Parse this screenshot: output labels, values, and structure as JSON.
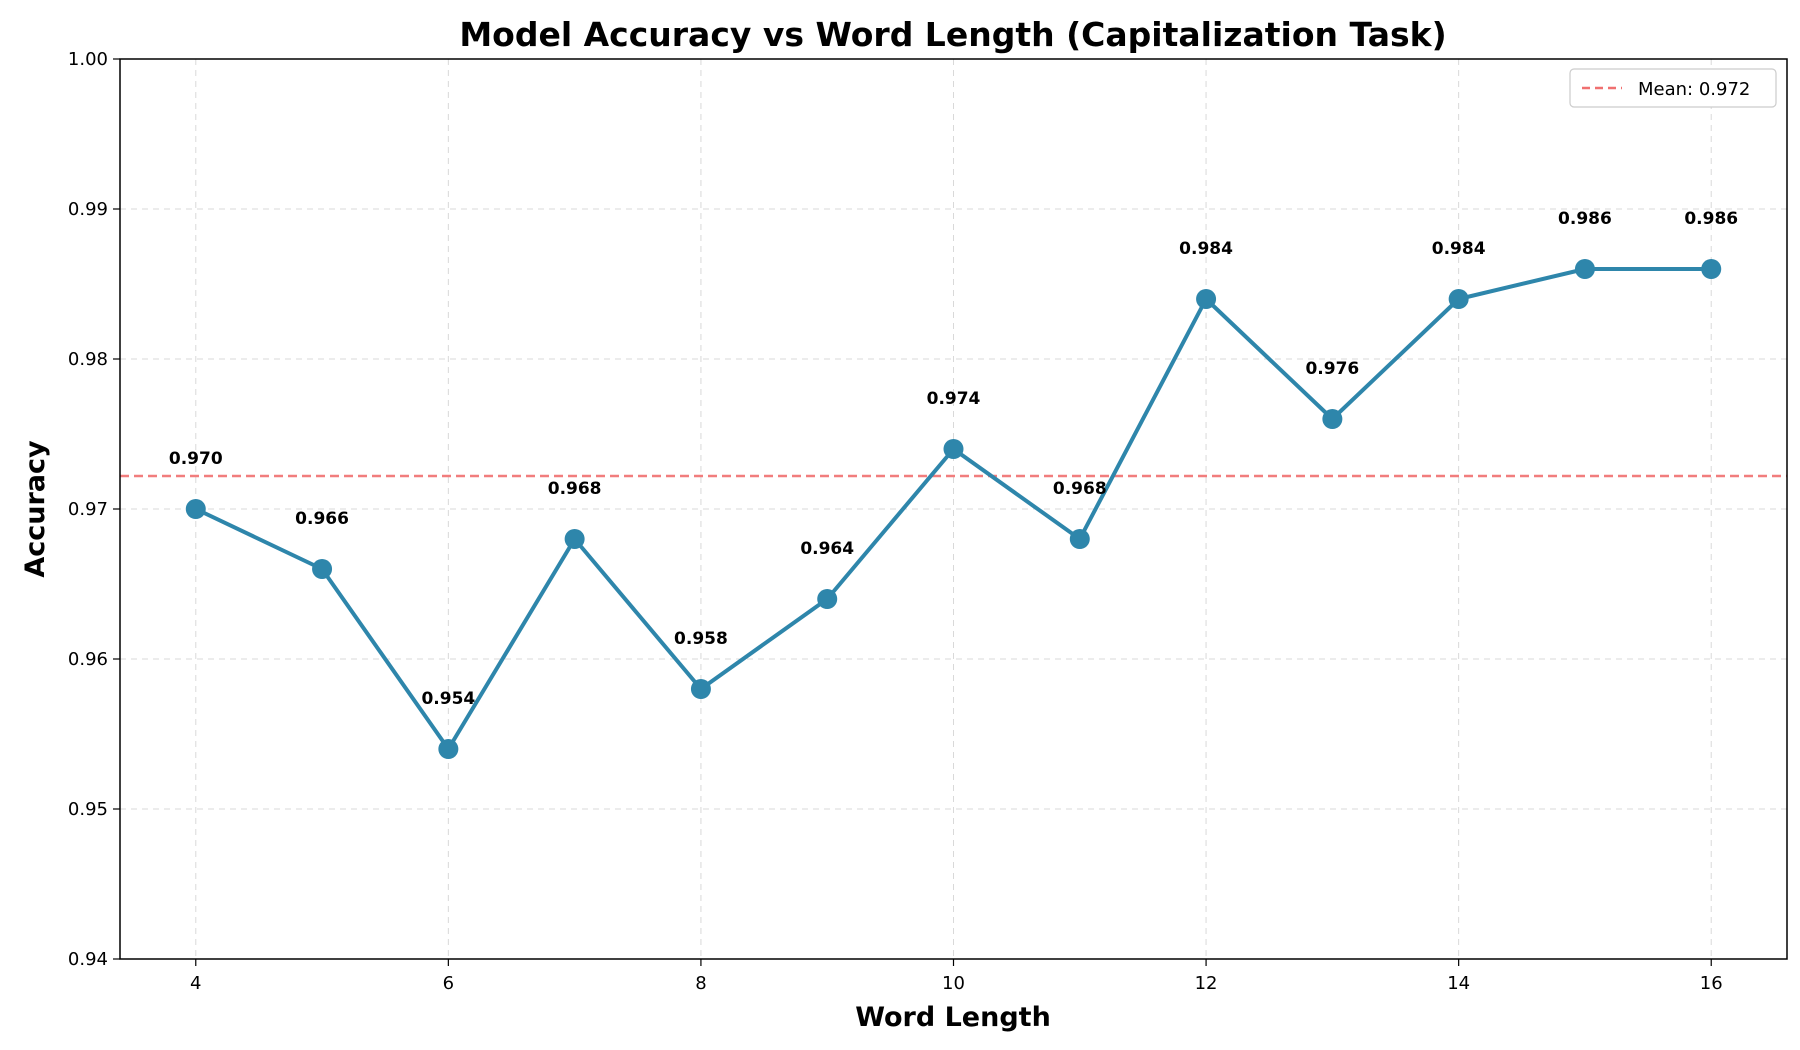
{
  "chart_data": {
    "type": "line",
    "title": "Model Accuracy vs Word Length (Capitalization Task)",
    "xlabel": "Word Length",
    "ylabel": "Accuracy",
    "xlim": [
      3.4,
      16.6
    ],
    "ylim": [
      0.94,
      1.0
    ],
    "xticks": [
      4,
      6,
      8,
      10,
      12,
      14,
      16
    ],
    "xtick_labels": [
      "4",
      "6",
      "8",
      "10",
      "12",
      "14",
      "16"
    ],
    "yticks": [
      0.94,
      0.95,
      0.96,
      0.97,
      0.98,
      0.99,
      1.0
    ],
    "ytick_labels": [
      "0.94",
      "0.95",
      "0.96",
      "0.97",
      "0.98",
      "0.99",
      "1.00"
    ],
    "grid": true,
    "series": [
      {
        "x": [
          4,
          5,
          6,
          7,
          8,
          9,
          10,
          11,
          12,
          13,
          14,
          15,
          16
        ],
        "y": [
          0.97,
          0.966,
          0.954,
          0.968,
          0.958,
          0.964,
          0.974,
          0.968,
          0.984,
          0.976,
          0.984,
          0.986,
          0.986
        ],
        "labels": [
          "0.970",
          "0.966",
          "0.954",
          "0.968",
          "0.958",
          "0.964",
          "0.974",
          "0.968",
          "0.984",
          "0.976",
          "0.984",
          "0.986",
          "0.986"
        ],
        "color": "#2e86ab"
      }
    ],
    "mean_line": {
      "value": 0.9722,
      "label": "Mean: 0.972",
      "color": "#f07070"
    },
    "legend_position": "top-right"
  }
}
